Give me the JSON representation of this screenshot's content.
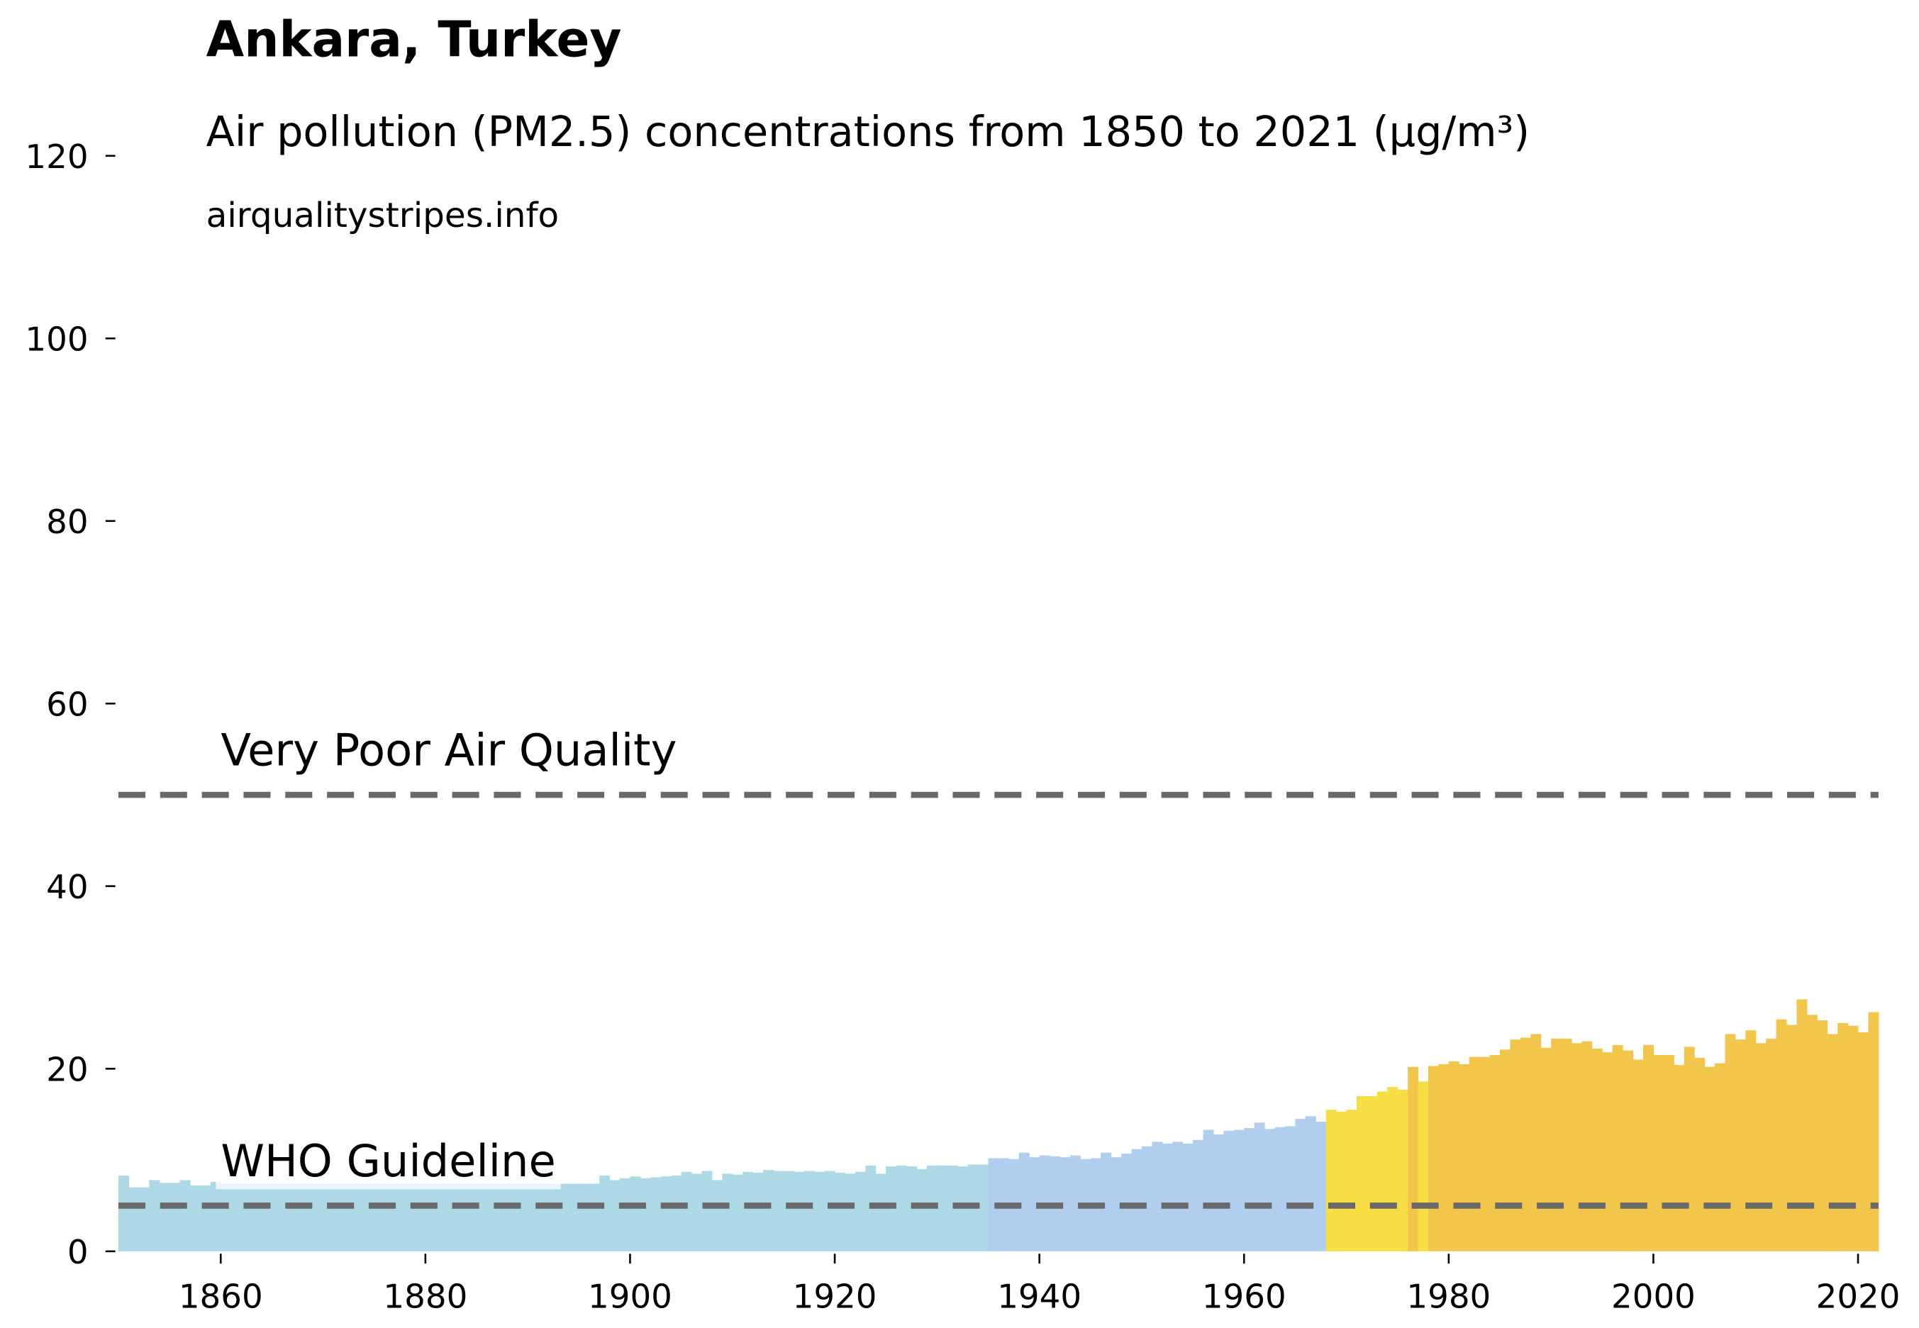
{
  "chart_data": {
    "type": "bar",
    "title": "Ankara, Turkey",
    "subtitle": "Air pollution (PM2.5) concentrations from 1850 to 2021 (µg/m³)",
    "source": "airqualitystripes.info",
    "x": [
      1850,
      1851,
      1852,
      1853,
      1854,
      1855,
      1856,
      1857,
      1858,
      1859,
      1860,
      1861,
      1862,
      1863,
      1864,
      1865,
      1866,
      1867,
      1868,
      1869,
      1870,
      1871,
      1872,
      1873,
      1874,
      1875,
      1876,
      1877,
      1878,
      1879,
      1880,
      1881,
      1882,
      1883,
      1884,
      1885,
      1886,
      1887,
      1888,
      1889,
      1890,
      1891,
      1892,
      1893,
      1894,
      1895,
      1896,
      1897,
      1898,
      1899,
      1900,
      1901,
      1902,
      1903,
      1904,
      1905,
      1906,
      1907,
      1908,
      1909,
      1910,
      1911,
      1912,
      1913,
      1914,
      1915,
      1916,
      1917,
      1918,
      1919,
      1920,
      1921,
      1922,
      1923,
      1924,
      1925,
      1926,
      1927,
      1928,
      1929,
      1930,
      1931,
      1932,
      1933,
      1934,
      1935,
      1936,
      1937,
      1938,
      1939,
      1940,
      1941,
      1942,
      1943,
      1944,
      1945,
      1946,
      1947,
      1948,
      1949,
      1950,
      1951,
      1952,
      1953,
      1954,
      1955,
      1956,
      1957,
      1958,
      1959,
      1960,
      1961,
      1962,
      1963,
      1964,
      1965,
      1966,
      1967,
      1968,
      1969,
      1970,
      1971,
      1972,
      1973,
      1974,
      1975,
      1976,
      1977,
      1978,
      1979,
      1980,
      1981,
      1982,
      1983,
      1984,
      1985,
      1986,
      1987,
      1988,
      1989,
      1990,
      1991,
      1992,
      1993,
      1994,
      1995,
      1996,
      1997,
      1998,
      1999,
      2000,
      2001,
      2002,
      2003,
      2004,
      2005,
      2006,
      2007,
      2008,
      2009,
      2010,
      2011,
      2012,
      2013,
      2014,
      2015,
      2016,
      2017,
      2018,
      2019,
      2020,
      2021
    ],
    "values": [
      8.3,
      7.0,
      7.0,
      7.8,
      7.5,
      7.5,
      7.8,
      7.2,
      7.2,
      7.6,
      7.4,
      7.4,
      7.4,
      7.4,
      7.4,
      7.4,
      7.4,
      7.4,
      7.4,
      7.4,
      7.4,
      7.4,
      7.4,
      7.4,
      7.4,
      7.4,
      7.4,
      7.4,
      7.4,
      7.4,
      7.4,
      7.4,
      7.4,
      7.4,
      7.4,
      7.4,
      7.4,
      7.4,
      7.4,
      7.4,
      7.4,
      7.4,
      7.4,
      7.4,
      7.4,
      7.4,
      7.4,
      8.3,
      7.8,
      8.0,
      8.2,
      8.0,
      8.1,
      8.2,
      8.3,
      8.7,
      8.5,
      8.8,
      7.8,
      8.5,
      8.4,
      8.7,
      8.6,
      8.9,
      8.8,
      8.8,
      8.7,
      8.8,
      8.7,
      8.8,
      8.6,
      8.5,
      8.7,
      9.4,
      8.5,
      9.3,
      9.4,
      9.3,
      9.0,
      9.4,
      9.4,
      9.4,
      9.3,
      9.5,
      9.5,
      10.2,
      10.2,
      10.1,
      10.8,
      10.3,
      10.5,
      10.4,
      10.3,
      10.5,
      10.1,
      10.2,
      10.8,
      10.3,
      10.7,
      11.2,
      11.5,
      12.0,
      11.8,
      12.0,
      11.8,
      12.2,
      13.3,
      12.8,
      13.2,
      13.3,
      13.5,
      14.1,
      13.4,
      13.6,
      13.7,
      14.5,
      14.8,
      14.2,
      15.5,
      15.3,
      15.5,
      17.0,
      17.0,
      17.5,
      18.0,
      17.7,
      20.2,
      18.6,
      20.3,
      20.5,
      20.8,
      20.5,
      21.3,
      21.3,
      21.5,
      22.1,
      23.2,
      23.4,
      23.8,
      22.3,
      23.3,
      23.3,
      22.8,
      23.0,
      22.2,
      21.8,
      22.6,
      22.0,
      21.0,
      22.6,
      21.5,
      21.5,
      20.4,
      22.4,
      21.2,
      20.2,
      20.6,
      23.8,
      23.2,
      24.2,
      22.8,
      23.3,
      25.4,
      24.8,
      27.6,
      25.9,
      25.3,
      23.8,
      25.0,
      24.7,
      24.0,
      26.2
    ],
    "colors": [
      "#add8e6",
      "#add8e6",
      "#add8e6",
      "#add8e6",
      "#add8e6",
      "#add8e6",
      "#add8e6",
      "#add8e6",
      "#add8e6",
      "#add8e6",
      "#add8e6",
      "#add8e6",
      "#add8e6",
      "#add8e6",
      "#add8e6",
      "#add8e6",
      "#add8e6",
      "#add8e6",
      "#add8e6",
      "#add8e6",
      "#add8e6",
      "#add8e6",
      "#add8e6",
      "#add8e6",
      "#add8e6",
      "#add8e6",
      "#add8e6",
      "#add8e6",
      "#add8e6",
      "#add8e6",
      "#add8e6",
      "#add8e6",
      "#add8e6",
      "#add8e6",
      "#add8e6",
      "#add8e6",
      "#add8e6",
      "#add8e6",
      "#add8e6",
      "#add8e6",
      "#add8e6",
      "#add8e6",
      "#add8e6",
      "#add8e6",
      "#add8e6",
      "#add8e6",
      "#add8e6",
      "#add8e6",
      "#add8e6",
      "#add8e6",
      "#add8e6",
      "#add8e6",
      "#add8e6",
      "#add8e6",
      "#add8e6",
      "#add8e6",
      "#add8e6",
      "#add8e6",
      "#add8e6",
      "#add8e6",
      "#add8e6",
      "#add8e6",
      "#add8e6",
      "#add8e6",
      "#add8e6",
      "#add8e6",
      "#add8e6",
      "#add8e6",
      "#add8e6",
      "#add8e6",
      "#add8e6",
      "#add8e6",
      "#add8e6",
      "#add8e6",
      "#add8e6",
      "#add8e6",
      "#add8e6",
      "#add8e6",
      "#add8e6",
      "#add8e6",
      "#add8e6",
      "#add8e6",
      "#add8e6",
      "#add8e6",
      "#add8e6",
      "#b0cfee",
      "#b0cfee",
      "#b0cfee",
      "#b0cfee",
      "#b0cfee",
      "#b0cfee",
      "#b0cfee",
      "#b0cfee",
      "#b0cfee",
      "#b0cfee",
      "#b0cfee",
      "#b0cfee",
      "#b0cfee",
      "#b0cfee",
      "#b0cfee",
      "#b0cfee",
      "#b0cfee",
      "#b0cfee",
      "#b0cfee",
      "#b0cfee",
      "#b0cfee",
      "#b0cfee",
      "#b0cfee",
      "#b0cfee",
      "#b0cfee",
      "#b0cfee",
      "#b0cfee",
      "#b0cfee",
      "#b0cfee",
      "#b0cfee",
      "#b0cfee",
      "#b0cfee",
      "#b0cfee",
      "#f7de45",
      "#f7de45",
      "#f7de45",
      "#f7de45",
      "#f7de45",
      "#f7de45",
      "#f7de45",
      "#f7de45",
      "#f2c64b",
      "#f7de45",
      "#f2c64b",
      "#f2c64b",
      "#f2c64b",
      "#f2c64b",
      "#f2c64b",
      "#f2c64b",
      "#f2c64b",
      "#f2c64b",
      "#f2c64b",
      "#f2c64b",
      "#f2c64b",
      "#f2c64b",
      "#f2c64b",
      "#f2c64b",
      "#f2c64b",
      "#f2c64b",
      "#f2c64b",
      "#f2c64b",
      "#f2c64b",
      "#f2c64b",
      "#f2c64b",
      "#f2c64b",
      "#f2c64b",
      "#f2c64b",
      "#f2c64b",
      "#f2c64b",
      "#f2c64b",
      "#f2c64b",
      "#f2c64b",
      "#f2c64b",
      "#f2c64b",
      "#f2c64b",
      "#f2c64b",
      "#f2c64b",
      "#f2c64b",
      "#f2c64b",
      "#f2c64b",
      "#f2c64b",
      "#f2c64b",
      "#f2c64b",
      "#f2c64b",
      "#f2c64b",
      "#f2c64b",
      "#f2c64b"
    ],
    "xlim": [
      1850,
      2022
    ],
    "xticks": [
      1860,
      1880,
      1900,
      1920,
      1940,
      1960,
      1980,
      2000,
      2020
    ],
    "ylim": [
      0,
      120
    ],
    "yticks": [
      0,
      20,
      40,
      60,
      80,
      100,
      120
    ],
    "hlines": [
      {
        "y": 50,
        "label": "Very Poor Air Quality",
        "color": "#696969"
      },
      {
        "y": 5,
        "label": "WHO Guideline",
        "color": "#696969"
      }
    ]
  }
}
